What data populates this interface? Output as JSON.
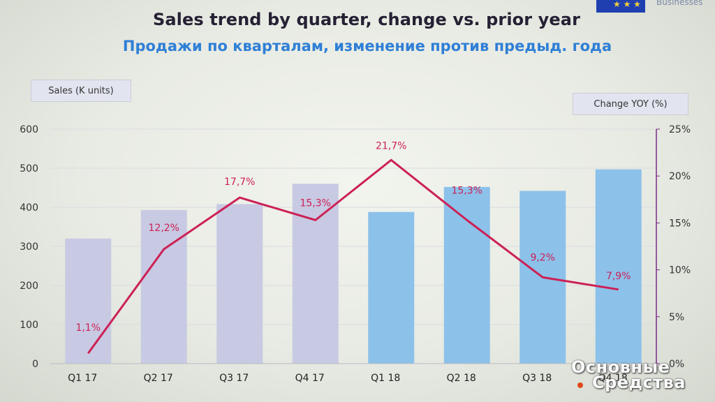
{
  "header": {
    "title": "Sales trend by quarter, change vs. prior year",
    "subtitle": "Продажи по кварталам, изменение против предыд. года",
    "brand_text": "Businesses"
  },
  "watermark": {
    "line1": "Основные",
    "line2": "Средства"
  },
  "colors": {
    "bar_2017": "#c8c9e3",
    "bar_2018": "#8cc1ea",
    "line": "#cc2155",
    "title": "#262034",
    "subtitle": "#2f7fd6",
    "right_axis": "#7a2a8a"
  },
  "chart_data": {
    "type": "bar",
    "title": "Sales trend by quarter, change vs. prior year",
    "subtitle": "Продажи по кварталам, изменение против предыд. года",
    "ylabel": "Sales  (K units)",
    "y2label": "Change YOY (%)",
    "categories": [
      "Q1 17",
      "Q2 17",
      "Q3 17",
      "Q4 17",
      "Q1 18",
      "Q2 18",
      "Q3 18",
      "Q4 18"
    ],
    "ylim": [
      0,
      600
    ],
    "yticks": [
      "0",
      "100",
      "200",
      "300",
      "400",
      "500",
      "600"
    ],
    "y2lim": [
      0,
      25
    ],
    "y2ticks": [
      "0%",
      "5%",
      "10%",
      "15%",
      "20%",
      "25%"
    ],
    "grid": true,
    "series": [
      {
        "type": "bar",
        "values": [
          320,
          393,
          408,
          460,
          388,
          452,
          442,
          497
        ]
      },
      {
        "type": "line",
        "axis": "right",
        "values": [
          1.1,
          12.2,
          17.7,
          15.3,
          21.7,
          15.3,
          9.2,
          7.9
        ],
        "labels": [
          "1,1%",
          "12,2%",
          "17,7%",
          "15,3%",
          "21,7%",
          "15,3%",
          "9,2%",
          "7,9%"
        ]
      }
    ]
  }
}
